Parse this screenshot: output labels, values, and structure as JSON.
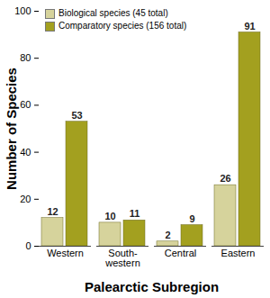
{
  "chart_data": {
    "type": "bar",
    "categories": [
      "Western",
      "South-western",
      "Central",
      "Eastern"
    ],
    "series": [
      {
        "name": "Biological species (45 total)",
        "color": "#d6d39c",
        "values": [
          12,
          10,
          2,
          26
        ]
      },
      {
        "name": "Comparatory species (156 total)",
        "color": "#a3a01f",
        "values": [
          53,
          11,
          9,
          91
        ]
      }
    ],
    "x_label": "Palearctic Subregion",
    "y_label": "Number of Species",
    "ylim": [
      0,
      100
    ],
    "yticks": [
      0,
      20,
      40,
      60,
      80,
      100
    ],
    "grid": false,
    "legend": "upper left",
    "data_labels": true
  }
}
